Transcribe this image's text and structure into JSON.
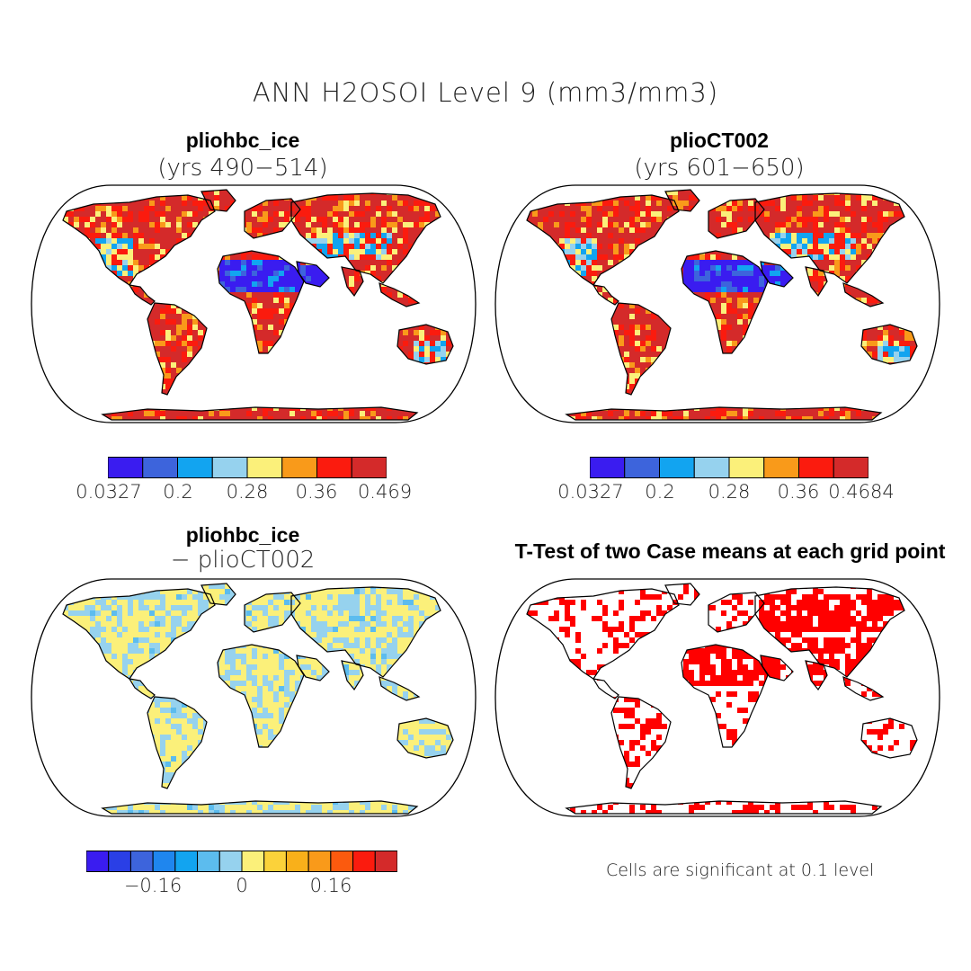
{
  "title": "ANN H2OSOI Level 9 (mm3/mm3)",
  "panels": {
    "top_left": {
      "title": "pliohbc_ice",
      "subtitle": "(yrs 490−514)"
    },
    "top_right": {
      "title": "plioCT002",
      "subtitle": "(yrs 601−650)"
    },
    "bottom_left": {
      "title": "pliohbc_ice",
      "subtitle": "− plioCT002"
    },
    "bottom_right": {
      "title": "T-Test of two Case means at each grid point",
      "note": "Cells are significant at 0.1 level"
    }
  },
  "colorbars": {
    "top_left": {
      "colors": [
        "#3a1cf0",
        "#3d64dc",
        "#12a4f0",
        "#96d2ee",
        "#fbf07a",
        "#f99a1a",
        "#fb1b0e",
        "#d42a2a"
      ],
      "labels": [
        "0.0327",
        "0.2",
        "0.28",
        "0.36",
        "0.469"
      ]
    },
    "top_right": {
      "colors": [
        "#3a1cf0",
        "#3d64dc",
        "#12a4f0",
        "#96d2ee",
        "#fbf07a",
        "#f99a1a",
        "#fb1b0e",
        "#d42a2a"
      ],
      "labels": [
        "0.0327",
        "0.2",
        "0.28",
        "0.36",
        "0.4684"
      ]
    },
    "bottom_left": {
      "colors": [
        "#3a1cf0",
        "#2a3fe6",
        "#3d64dc",
        "#1f86ee",
        "#12a4f0",
        "#5cbcee",
        "#96d2ee",
        "#fbf07a",
        "#fbd23a",
        "#f9b01a",
        "#f99a1a",
        "#fb5a0e",
        "#fb1b0e",
        "#d42a2a"
      ],
      "labels": [
        "−0.16",
        "0",
        "0.16"
      ]
    }
  },
  "map_colors": {
    "outline": "#000000",
    "ttest_significant": "#ff0000"
  }
}
